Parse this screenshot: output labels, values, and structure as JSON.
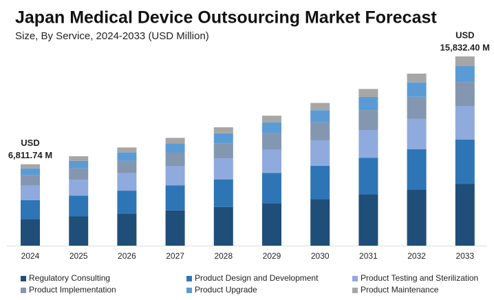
{
  "chart_data": {
    "type": "stacked_bar",
    "title": "Japan Medical Device Outsourcing Market Forecast",
    "subtitle": "Size, By Service, 2024-2033 (USD Million)",
    "categories": [
      "2024",
      "2025",
      "2026",
      "2027",
      "2028",
      "2029",
      "2030",
      "2031",
      "2032",
      "2033"
    ],
    "series": [
      {
        "name": "Regulatory Consulting",
        "color": "#1f4e79",
        "values": [
          2227,
          2446,
          2686,
          2949,
          3238,
          3555,
          3904,
          4286,
          4707,
          5177
        ]
      },
      {
        "name": "Product Design and Development",
        "color": "#2e75b6",
        "values": [
          1587,
          1743,
          1914,
          2101,
          2307,
          2533,
          2782,
          3054,
          3354,
          3689
        ]
      },
      {
        "name": "Product Testing and Sterilization",
        "color": "#8faadc",
        "values": [
          1212,
          1331,
          1462,
          1605,
          1763,
          1935,
          2125,
          2333,
          2562,
          2818
        ]
      },
      {
        "name": "Product Implementation",
        "color": "#8497b0",
        "values": [
          865,
          950,
          1043,
          1145,
          1258,
          1381,
          1516,
          1665,
          1828,
          2011
        ]
      },
      {
        "name": "Product Upgrade",
        "color": "#5b9bd5",
        "values": [
          572,
          628,
          690,
          758,
          832,
          913,
          1003,
          1101,
          1209,
          1330
        ]
      },
      {
        "name": "Product Maintenance",
        "color": "#a6a6a6",
        "values": [
          348,
          382,
          418,
          460,
          504,
          556,
          608,
          669,
          733,
          807
        ]
      }
    ],
    "annotations": [
      {
        "category": "2024",
        "lines": [
          "USD",
          "6,811.74 M"
        ]
      },
      {
        "category": "2033",
        "lines": [
          "USD",
          "15,832.40 M"
        ]
      }
    ]
  }
}
